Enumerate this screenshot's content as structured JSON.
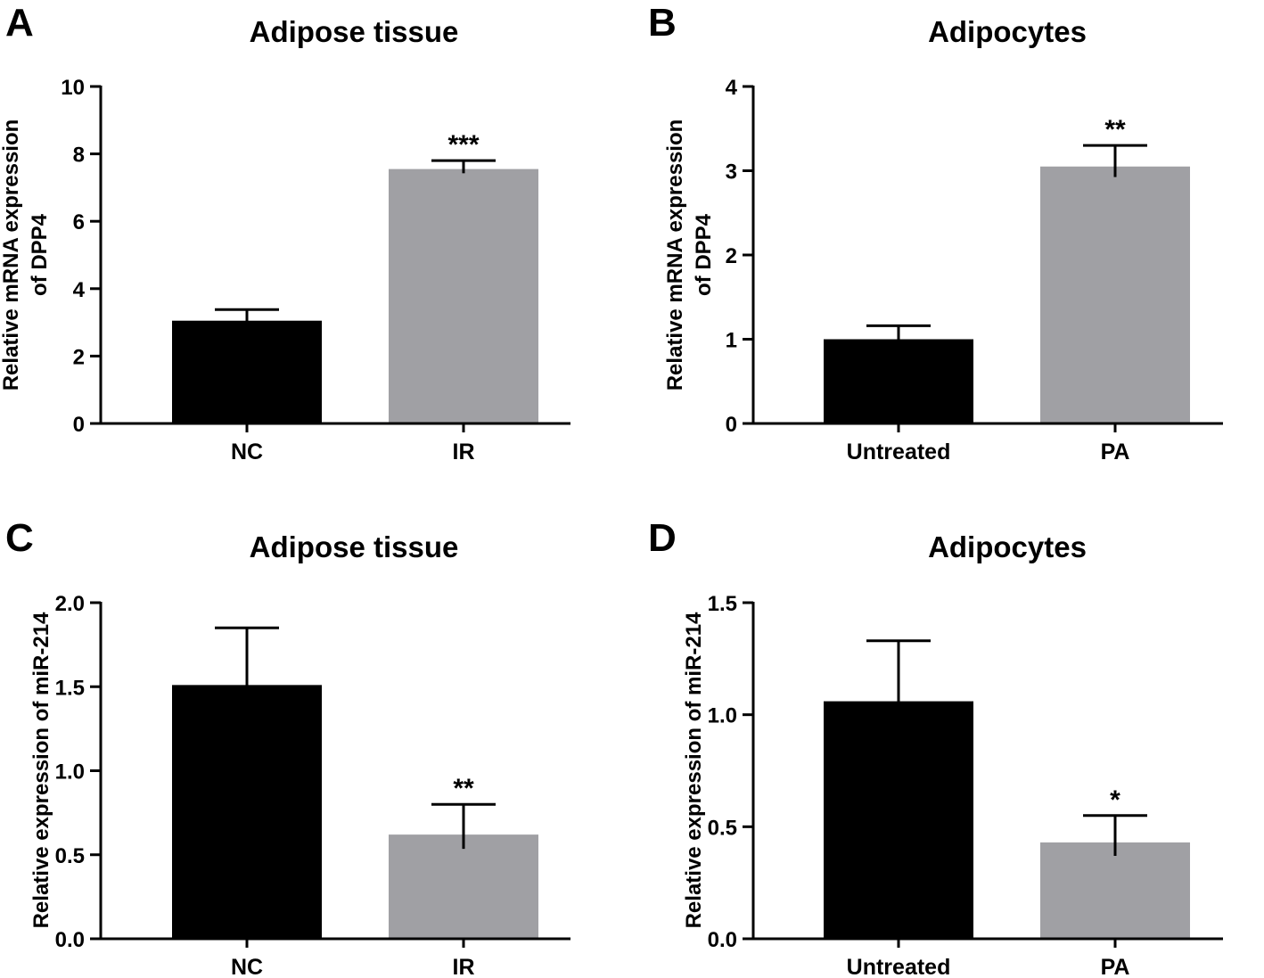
{
  "figure": {
    "background": "#ffffff"
  },
  "chart_data": [
    {
      "panel": "A",
      "type": "bar",
      "title": "Adipose tissue",
      "ylabel": [
        "Relative mRNA expression",
        "of DPP4"
      ],
      "xlabel": "",
      "categories": [
        "NC",
        "IR"
      ],
      "values": [
        3.05,
        7.55
      ],
      "errors": [
        0.33,
        0.25
      ],
      "significance": [
        "",
        "***"
      ],
      "colors": [
        "#000000",
        "#a0a0a4"
      ],
      "ylim": [
        0,
        10
      ],
      "yticks": [
        "0",
        "2",
        "4",
        "6",
        "8",
        "10"
      ],
      "ytick_values": [
        0,
        2,
        4,
        6,
        8,
        10
      ]
    },
    {
      "panel": "B",
      "type": "bar",
      "title": "Adipocytes",
      "ylabel": [
        "Relative mRNA expression",
        "of DPP4"
      ],
      "xlabel": "",
      "categories": [
        "Untreated",
        "PA"
      ],
      "values": [
        1.0,
        3.05
      ],
      "errors": [
        0.16,
        0.25
      ],
      "significance": [
        "",
        "**"
      ],
      "colors": [
        "#000000",
        "#a0a0a4"
      ],
      "ylim": [
        0,
        4
      ],
      "yticks": [
        "0",
        "1",
        "2",
        "3",
        "4"
      ],
      "ytick_values": [
        0,
        1,
        2,
        3,
        4
      ]
    },
    {
      "panel": "C",
      "type": "bar",
      "title": "Adipose tissue",
      "ylabel": [
        "Relative expression of miR-214"
      ],
      "xlabel": "",
      "categories": [
        "NC",
        "IR"
      ],
      "values": [
        1.51,
        0.62
      ],
      "errors": [
        0.34,
        0.18
      ],
      "significance": [
        "",
        "**"
      ],
      "colors": [
        "#000000",
        "#a0a0a4"
      ],
      "ylim": [
        0,
        2.0
      ],
      "yticks": [
        "0.0",
        "0.5",
        "1.0",
        "1.5",
        "2.0"
      ],
      "ytick_values": [
        0,
        0.5,
        1.0,
        1.5,
        2.0
      ]
    },
    {
      "panel": "D",
      "type": "bar",
      "title": "Adipocytes",
      "ylabel": [
        "Relative expression of miR-214"
      ],
      "xlabel": "",
      "categories": [
        "Untreated",
        "PA"
      ],
      "values": [
        1.06,
        0.43
      ],
      "errors": [
        0.27,
        0.12
      ],
      "significance": [
        "",
        "*"
      ],
      "colors": [
        "#000000",
        "#a0a0a4"
      ],
      "ylim": [
        0,
        1.5
      ],
      "yticks": [
        "0.0",
        "0.5",
        "1.0",
        "1.5"
      ],
      "ytick_values": [
        0,
        0.5,
        1.0,
        1.5
      ]
    }
  ]
}
